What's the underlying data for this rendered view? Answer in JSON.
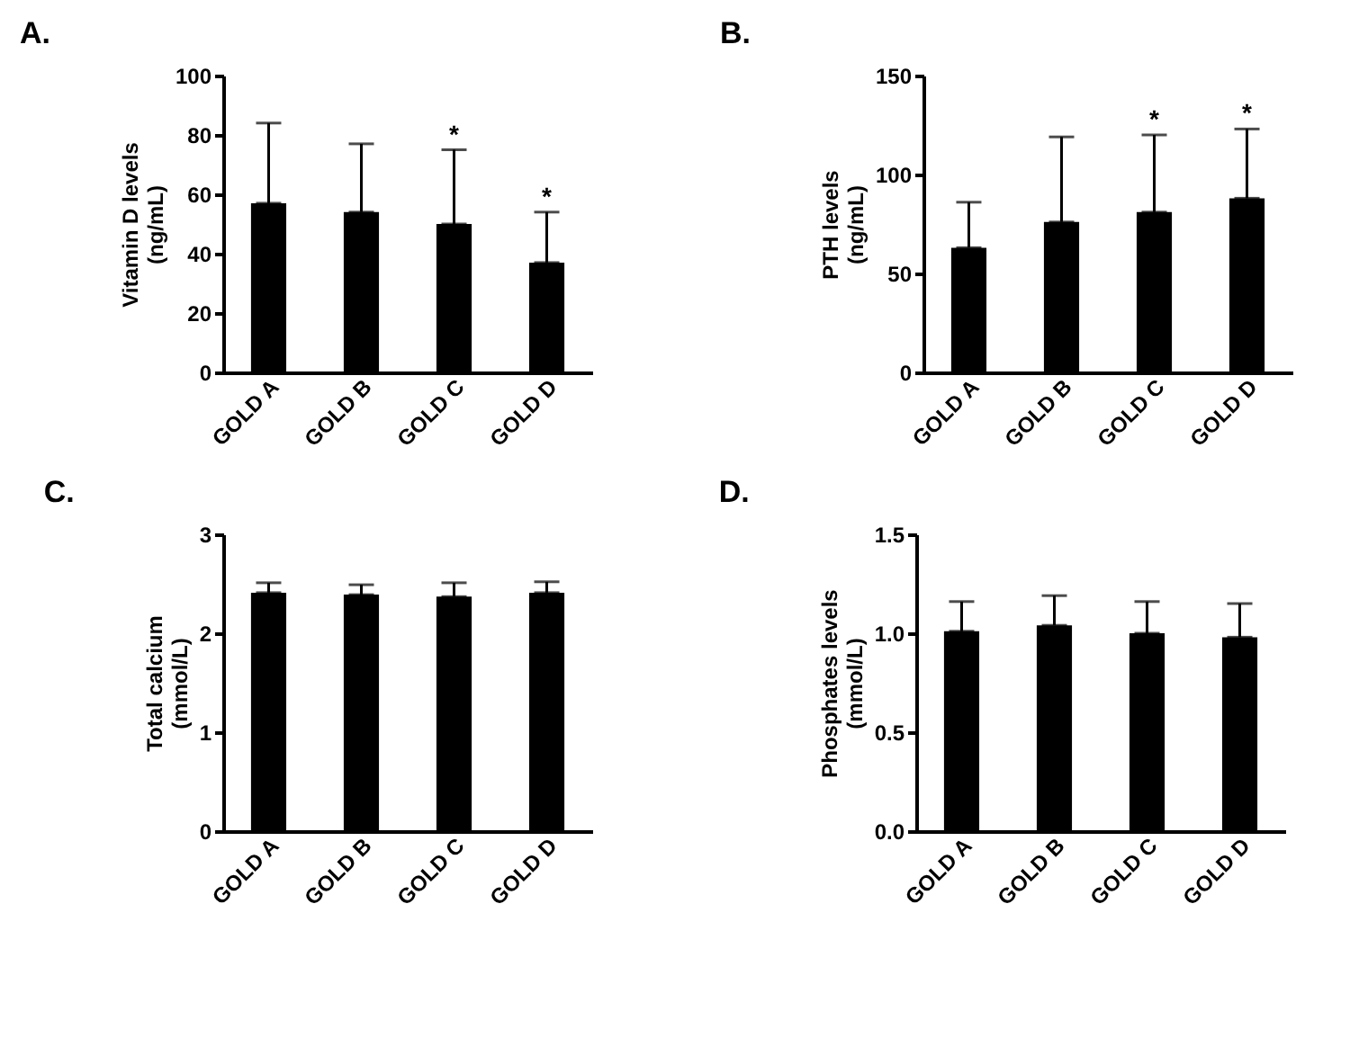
{
  "chart_data": [
    {
      "type": "bar",
      "title": "A.",
      "ylabel": "Vitamin D levels\n(ng/mL)",
      "categories": [
        "GOLD A",
        "GOLD B",
        "GOLD C",
        "GOLD D"
      ],
      "values": [
        57,
        54,
        50,
        37
      ],
      "errors": [
        [
          57,
          84
        ],
        [
          54,
          77
        ],
        [
          50,
          75
        ],
        [
          37,
          54
        ]
      ],
      "color": "#000000",
      "ylim": [
        0,
        100
      ],
      "yticks": [
        0,
        20,
        40,
        60,
        80,
        100
      ],
      "grid": false,
      "value_labels": [
        null,
        null,
        "*",
        "*"
      ]
    },
    {
      "type": "bar",
      "title": "B.",
      "ylabel": "PTH levels\n(ng/mL)",
      "categories": [
        "GOLD A",
        "GOLD B",
        "GOLD C",
        "GOLD D"
      ],
      "values": [
        63,
        76,
        81,
        88
      ],
      "errors": [
        [
          63,
          86
        ],
        [
          76,
          119
        ],
        [
          81,
          120
        ],
        [
          88,
          123
        ]
      ],
      "color": "#000000",
      "ylim": [
        0,
        150
      ],
      "yticks": [
        0,
        50,
        100,
        150
      ],
      "grid": false,
      "value_labels": [
        null,
        null,
        "*",
        "*"
      ]
    },
    {
      "type": "bar",
      "title": "C.",
      "ylabel": "Total calcium\n(mmol/L)",
      "categories": [
        "GOLD A",
        "GOLD B",
        "GOLD C",
        "GOLD D"
      ],
      "values": [
        2.41,
        2.39,
        2.37,
        2.41
      ],
      "errors": [
        [
          2.41,
          2.51
        ],
        [
          2.39,
          2.49
        ],
        [
          2.37,
          2.51
        ],
        [
          2.41,
          2.52
        ]
      ],
      "color": "#000000",
      "ylim": [
        0,
        3
      ],
      "yticks": [
        0,
        1,
        2,
        3
      ],
      "grid": false
    },
    {
      "type": "bar",
      "title": "D.",
      "ylabel": "Phosphates levels\n(mmol/L)",
      "categories": [
        "GOLD A",
        "GOLD B",
        "GOLD C",
        "GOLD D"
      ],
      "values": [
        1.01,
        1.04,
        1.0,
        0.98
      ],
      "errors": [
        [
          1.01,
          1.16
        ],
        [
          1.04,
          1.19
        ],
        [
          1.0,
          1.16
        ],
        [
          0.98,
          1.15
        ]
      ],
      "color": "#000000",
      "ylim": [
        0,
        1.5
      ],
      "yticks": [
        {
          "value": 0,
          "label": "0.0"
        },
        {
          "value": 0.5,
          "label": "0.5"
        },
        {
          "value": 1,
          "label": "1.0"
        },
        {
          "value": 1.5,
          "label": "1.5"
        }
      ],
      "grid": false
    }
  ]
}
